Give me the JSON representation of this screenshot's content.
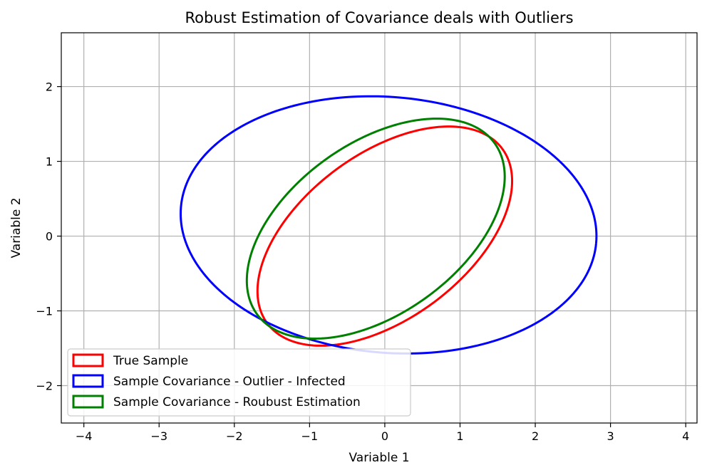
{
  "chart_data": {
    "type": "line",
    "title": "Robust Estimation of Covariance deals with Outliers",
    "xlabel": "Variable 1",
    "ylabel": "Variable 2",
    "xlim": [
      -4.3,
      4.15
    ],
    "ylim": [
      -2.5,
      2.72
    ],
    "xticks": [
      -4,
      -3,
      -2,
      -1,
      0,
      1,
      2,
      3,
      4
    ],
    "xtick_labels": [
      "−4",
      "−3",
      "−2",
      "−1",
      "0",
      "1",
      "2",
      "3",
      "4"
    ],
    "yticks": [
      -2,
      -1,
      0,
      1,
      2
    ],
    "ytick_labels": [
      "−2",
      "−1",
      "0",
      "1",
      "2"
    ],
    "grid": true,
    "legend_position": "lower-left",
    "series": [
      {
        "name": "True Sample",
        "color": "#ff0000",
        "ellipse": {
          "center": [
            0.0,
            0.0
          ],
          "semi_axes": [
            1.95,
            1.1
          ],
          "angle_deg": 37
        }
      },
      {
        "name": "Sample Covariance - Outlier - Infected",
        "color": "#0000ff",
        "ellipse": {
          "center": [
            0.05,
            0.15
          ],
          "semi_axes": [
            2.77,
            1.71
          ],
          "angle_deg": -5
        }
      },
      {
        "name": "Sample Covariance - Roubust Estimation",
        "color": "#008000",
        "ellipse": {
          "center": [
            -0.12,
            0.1
          ],
          "semi_axes": [
            1.95,
            1.14
          ],
          "angle_deg": 36
        }
      }
    ]
  }
}
